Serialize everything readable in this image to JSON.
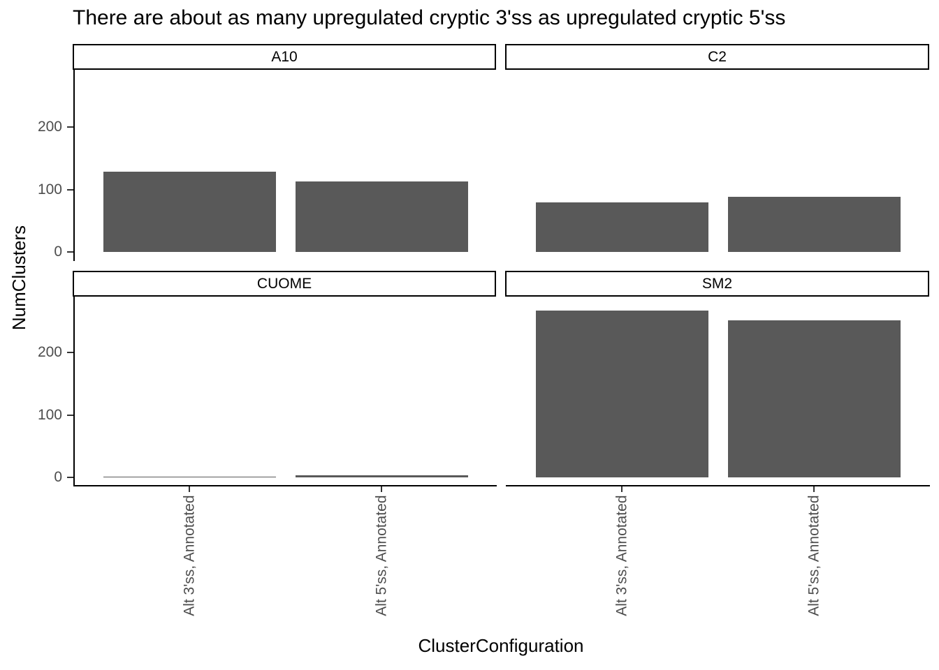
{
  "chart_data": {
    "type": "bar",
    "title": "There are about as many upregulated cryptic 3'ss as upregulated cryptic 5'ss",
    "xlabel": "ClusterConfiguration",
    "ylabel": "NumClusters",
    "categories": [
      "Alt 3'ss, Annotated",
      "Alt 5'ss, Annotated"
    ],
    "facets": [
      {
        "label": "A10",
        "values": [
          129,
          113
        ]
      },
      {
        "label": "C2",
        "values": [
          79,
          89
        ]
      },
      {
        "label": "CUOME",
        "values": [
          1,
          3
        ]
      },
      {
        "label": "SM2",
        "values": [
          268,
          252
        ]
      }
    ],
    "facet_grid": [
      [
        "A10",
        "C2"
      ],
      [
        "CUOME",
        "SM2"
      ]
    ],
    "yticks": [
      0,
      100,
      200
    ],
    "ylim": [
      -15,
      292
    ],
    "grid": false,
    "legend": false,
    "bar_color": "#595959",
    "axis_text_color": "#4d4d4d",
    "axis_line_color": "#000000",
    "tick_color": "#333333",
    "strip_background": "#ffffff",
    "strip_border_color": "#000000",
    "background_color": "#ffffff"
  }
}
